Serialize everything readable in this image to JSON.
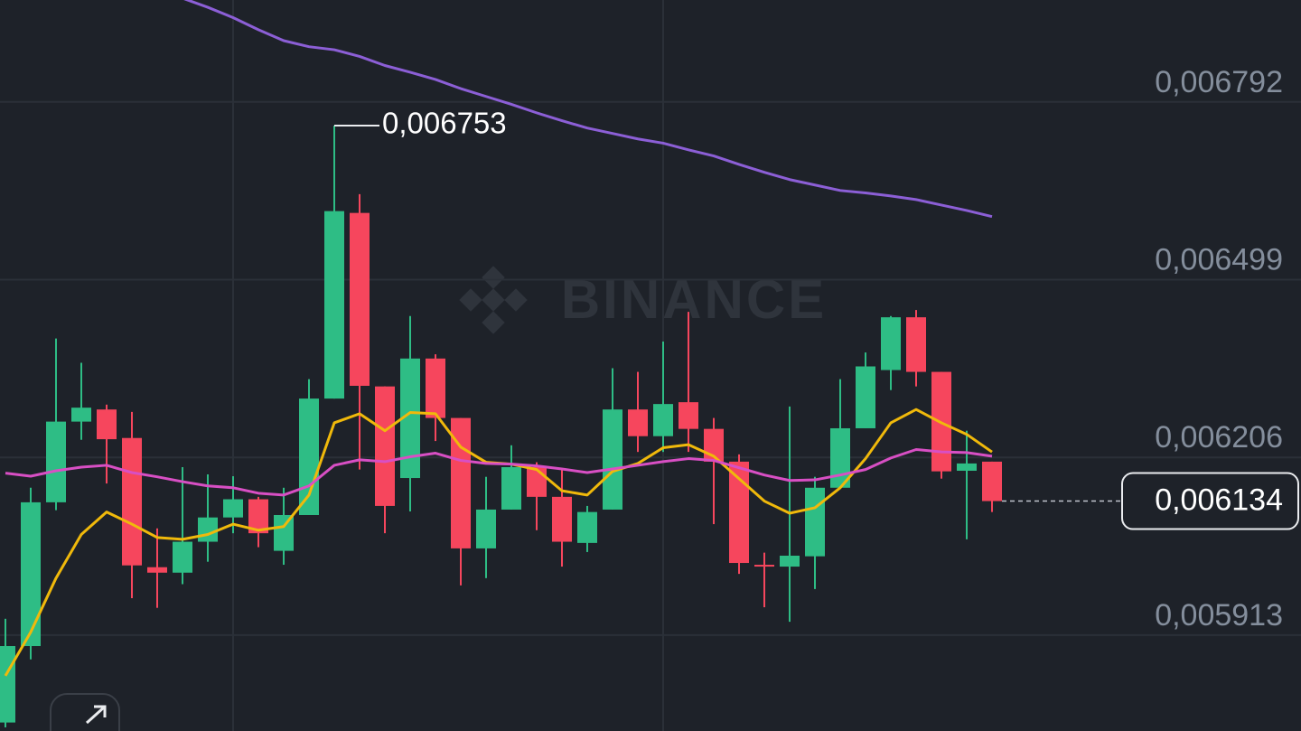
{
  "chart_data": {
    "type": "candlestick",
    "watermark": "BINANCE",
    "up_color": "#2ebd85",
    "down_color": "#f6465d",
    "open": [
      0.005769,
      0.005895,
      0.006132,
      0.006265,
      0.006285,
      0.006238,
      0.006025,
      0.006016,
      0.006067,
      0.006107,
      0.006137,
      0.006052,
      0.006111,
      0.006303,
      0.006609,
      0.006323,
      0.006172,
      0.006369,
      0.006271,
      0.006056,
      0.00612,
      0.00619,
      0.006141,
      0.006065,
      0.00612,
      0.006285,
      0.006241,
      0.006297,
      0.006253,
      0.006199,
      0.006029,
      0.006026,
      0.006043,
      0.006156,
      0.006254,
      0.00635,
      0.006437,
      0.006347,
      0.006184,
      0.006199
    ],
    "high": [
      0.00594,
      0.006156,
      0.006402,
      0.006362,
      0.006293,
      0.006281,
      0.006089,
      0.00619,
      0.006178,
      0.006175,
      0.006141,
      0.006156,
      0.006335,
      0.006753,
      0.00664,
      0.006323,
      0.006439,
      0.006376,
      0.006271,
      0.006174,
      0.006226,
      0.006198,
      0.006186,
      0.006126,
      0.006353,
      0.006347,
      0.006397,
      0.006446,
      0.006271,
      0.006211,
      0.006049,
      0.00629,
      0.006174,
      0.006335,
      0.006379,
      0.006439,
      0.006449,
      0.006347,
      0.00625,
      0.006199
    ],
    "low": [
      0.005761,
      0.005873,
      0.006119,
      0.006235,
      0.006163,
      0.005974,
      0.005958,
      0.005997,
      0.006034,
      0.006081,
      0.006058,
      0.006029,
      0.006111,
      0.006303,
      0.006186,
      0.006081,
      0.006117,
      0.006233,
      0.005995,
      0.006007,
      0.00612,
      0.006086,
      0.006026,
      0.00605,
      0.00612,
      0.006215,
      0.006215,
      0.006215,
      0.006096,
      0.006014,
      0.005959,
      0.005935,
      0.005989,
      0.006156,
      0.006254,
      0.006317,
      0.006323,
      0.006171,
      0.006071,
      0.006116
    ],
    "close": [
      0.005895,
      0.006132,
      0.006265,
      0.006288,
      0.006236,
      0.006028,
      0.006016,
      0.006067,
      0.006107,
      0.006137,
      0.006081,
      0.006111,
      0.006303,
      0.006612,
      0.006324,
      0.006126,
      0.006369,
      0.006271,
      0.006056,
      0.00612,
      0.00619,
      0.006141,
      0.006067,
      0.006116,
      0.006285,
      0.006241,
      0.006294,
      0.006253,
      0.006199,
      0.006032,
      0.006026,
      0.006044,
      0.006156,
      0.006254,
      0.006356,
      0.006437,
      0.006347,
      0.006183,
      0.006196,
      0.006134
    ],
    "lines": [
      {
        "color": "#f0b90b",
        "values": [
          0.005846,
          0.005918,
          0.006007,
          0.006079,
          0.006116,
          0.006096,
          0.006074,
          0.006071,
          0.006079,
          0.006096,
          0.006086,
          0.006092,
          0.006144,
          0.006263,
          0.006278,
          0.00625,
          0.00628,
          0.006278,
          0.006223,
          0.006198,
          0.006195,
          0.006186,
          0.006151,
          0.006144,
          0.006183,
          0.006196,
          0.006222,
          0.006227,
          0.006208,
          0.006171,
          0.006134,
          0.006114,
          0.006123,
          0.006156,
          0.006204,
          0.006263,
          0.006285,
          0.006263,
          0.006244,
          0.006215
        ]
      },
      {
        "color": "#d84fc4",
        "values": [
          0.00618,
          0.006175,
          0.006184,
          0.00619,
          0.006193,
          0.006181,
          0.006174,
          0.006166,
          0.006159,
          0.006156,
          0.006147,
          0.006144,
          0.006159,
          0.006193,
          0.006202,
          0.006199,
          0.006207,
          0.006213,
          0.006201,
          0.006196,
          0.006195,
          0.006192,
          0.006187,
          0.006181,
          0.006187,
          0.006193,
          0.006199,
          0.006204,
          0.006201,
          0.006189,
          0.006177,
          0.006168,
          0.006169,
          0.006177,
          0.006186,
          0.006205,
          0.006219,
          0.006215,
          0.006214,
          0.006208
        ]
      },
      {
        "color": "#8c5fd6",
        "values": [
          null,
          null,
          null,
          null,
          null,
          null,
          null,
          0.006963,
          0.006948,
          0.006931,
          0.006911,
          0.006893,
          0.006883,
          0.006878,
          0.006867,
          0.006852,
          0.006841,
          0.006829,
          0.006814,
          0.006801,
          0.006788,
          0.006774,
          0.006761,
          0.006749,
          0.00674,
          0.006731,
          0.006724,
          0.006713,
          0.006703,
          0.006689,
          0.006676,
          0.006664,
          0.006655,
          0.006646,
          0.006642,
          0.006637,
          0.006631,
          0.006622,
          0.006613,
          0.006603
        ]
      }
    ],
    "high_label": {
      "value": 0.006753,
      "label": "0,006753"
    },
    "last_price": {
      "value": 0.006134,
      "label": "0,006134"
    },
    "ylim": [
      0.005755,
      0.00696
    ],
    "yticks": [
      {
        "value": 0.006792,
        "label": "0,006792"
      },
      {
        "value": 0.006499,
        "label": "0,006499"
      },
      {
        "value": 0.006206,
        "label": "0,006206"
      },
      {
        "value": 0.005913,
        "label": "0,005913"
      }
    ],
    "grid": true
  }
}
